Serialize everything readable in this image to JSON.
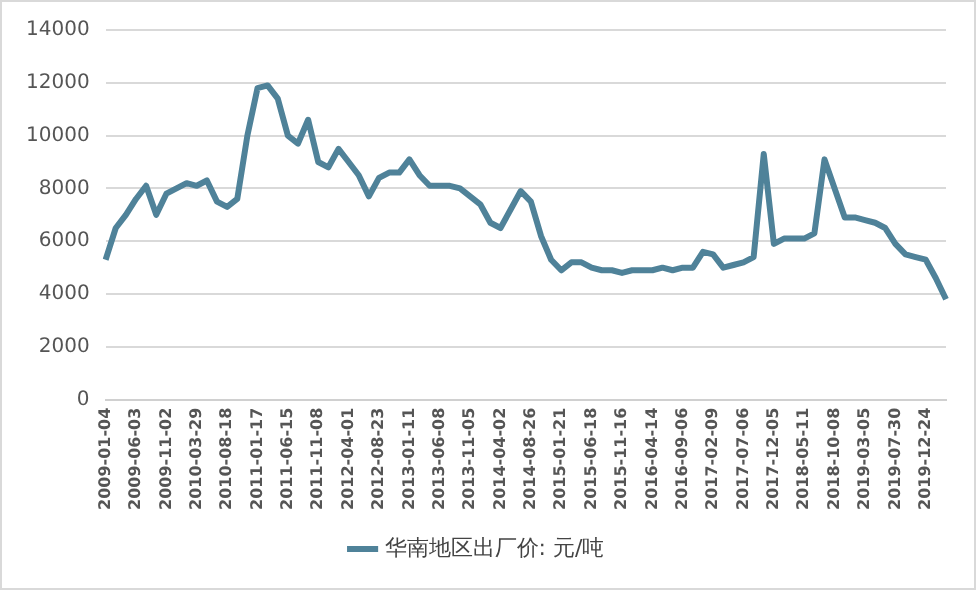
{
  "chart_data": {
    "type": "line",
    "categories": [
      "2009-01-04",
      null,
      null,
      "2009-06-03",
      null,
      null,
      "2009-11-02",
      null,
      null,
      "2010-03-29",
      null,
      null,
      "2010-08-18",
      null,
      null,
      "2011-01-17",
      null,
      null,
      "2011-06-15",
      null,
      null,
      "2011-11-08",
      null,
      null,
      "2012-04-01",
      null,
      null,
      "2012-08-23",
      null,
      null,
      "2013-01-11",
      null,
      null,
      "2013-06-08",
      null,
      null,
      "2013-11-05",
      null,
      null,
      "2014-04-02",
      null,
      null,
      "2014-08-26",
      null,
      null,
      "2015-01-21",
      null,
      null,
      "2015-06-18",
      null,
      null,
      "2015-11-16",
      null,
      null,
      "2016-04-14",
      null,
      null,
      "2016-09-06",
      null,
      null,
      "2017-02-09",
      null,
      null,
      "2017-07-06",
      null,
      null,
      "2017-12-05",
      null,
      null,
      "2018-05-11",
      null,
      null,
      "2018-10-08",
      null,
      null,
      "2019-03-05",
      null,
      null,
      "2019-07-30",
      null,
      null,
      "2019-12-24",
      null,
      null
    ],
    "series": [
      {
        "name": "华南地区出厂价: 元/吨",
        "color": "#4f8299",
        "values": [
          5300,
          6500,
          7000,
          7600,
          8100,
          7000,
          7800,
          8000,
          8200,
          8100,
          8300,
          7500,
          7300,
          7600,
          10000,
          11800,
          11900,
          11400,
          10000,
          9700,
          10600,
          9000,
          8800,
          9500,
          9000,
          8500,
          7700,
          8400,
          8600,
          8600,
          9100,
          8500,
          8100,
          8100,
          8100,
          8000,
          7700,
          7400,
          6700,
          6500,
          7200,
          7900,
          7500,
          6200,
          5300,
          4900,
          5200,
          5200,
          5000,
          4900,
          4900,
          4800,
          4900,
          4900,
          4900,
          5000,
          4900,
          5000,
          5000,
          5600,
          5500,
          5000,
          5100,
          5200,
          5400,
          9300,
          5900,
          6100,
          6100,
          6100,
          6300,
          9100,
          8000,
          6900,
          6900,
          6800,
          6700,
          6500,
          5900,
          5500,
          5400,
          5300,
          4600,
          3800
        ]
      }
    ],
    "ylim": [
      0,
      14000
    ],
    "yticks": [
      0,
      2000,
      4000,
      6000,
      8000,
      10000,
      12000,
      14000
    ],
    "grid": "y",
    "legend": "bottom",
    "marker": "none"
  }
}
